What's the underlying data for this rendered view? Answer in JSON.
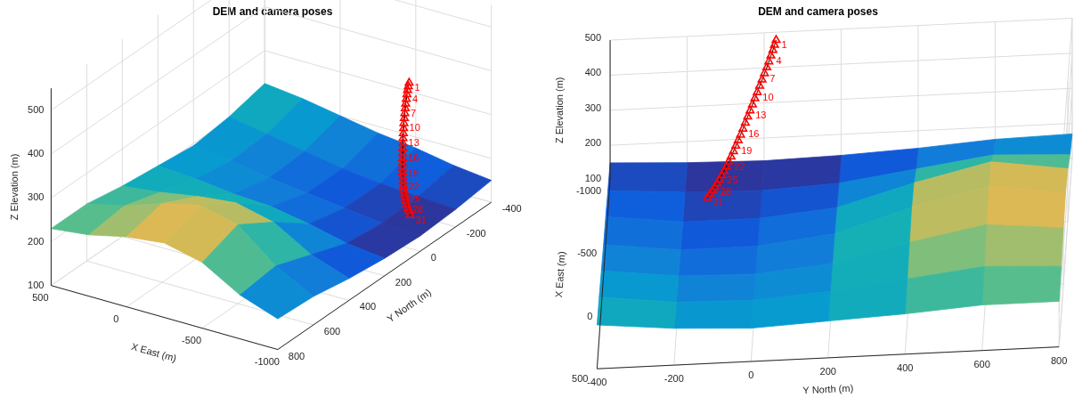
{
  "chart_data": [
    {
      "type": "surface3d",
      "title": "DEM and camera poses",
      "x_label": "X East (m)",
      "y_label": "Y North (m)",
      "z_label": "Z Elevation (m)",
      "xlim": [
        -1000,
        500
      ],
      "ylim": [
        -400,
        800
      ],
      "zlim": [
        100,
        550
      ],
      "xticks": [
        -1000,
        -500,
        0,
        500
      ],
      "yticks": [
        -400,
        -200,
        0,
        200,
        400,
        600,
        800
      ],
      "zticks": [
        100,
        200,
        300,
        400,
        500
      ],
      "grid": true,
      "surface": {
        "x": [
          -1000,
          -750,
          -500,
          -250,
          0,
          250,
          500
        ],
        "y": [
          -400,
          -200,
          0,
          200,
          400,
          600,
          800
        ],
        "z": [
          [
            150,
            140,
            135,
            140,
            150,
            165,
            170
          ],
          [
            160,
            145,
            140,
            150,
            180,
            210,
            200
          ],
          [
            175,
            150,
            150,
            170,
            230,
            280,
            250
          ],
          [
            185,
            160,
            160,
            185,
            250,
            300,
            270
          ],
          [
            200,
            175,
            170,
            190,
            240,
            280,
            260
          ],
          [
            215,
            190,
            185,
            200,
            225,
            250,
            240
          ],
          [
            225,
            205,
            195,
            205,
            215,
            230,
            230
          ]
        ]
      },
      "cameras": {
        "color": "#ff0000",
        "marker": "triangle",
        "x": [
          -965,
          -955,
          -945,
          -935,
          -925,
          -915,
          -905,
          -895,
          -885,
          -875,
          -866,
          -857,
          -848,
          -840,
          -832,
          -824,
          -816,
          -809,
          -802,
          -796,
          -790,
          -785,
          -780,
          -776,
          -773,
          -770,
          -768,
          -767,
          -767,
          -767,
          -767
        ],
        "y": [
          32,
          28,
          24,
          19,
          14,
          9,
          3,
          -3,
          -9,
          -15,
          -21,
          -27,
          -33,
          -39,
          -45,
          -51,
          -57,
          -63,
          -69,
          -75,
          -81,
          -87,
          -93,
          -99,
          -105,
          -111,
          -117,
          -123,
          -129,
          -135,
          -142
        ],
        "z": [
          490,
          480,
          469,
          457,
          444,
          431,
          418,
          404,
          390,
          376,
          362,
          348,
          334,
          320,
          306,
          292,
          278,
          265,
          252,
          239,
          226,
          214,
          202,
          191,
          180,
          169,
          159,
          149,
          140,
          131,
          120
        ],
        "labels": [
          1,
          null,
          null,
          4,
          null,
          null,
          7,
          null,
          null,
          10,
          null,
          null,
          13,
          null,
          null,
          16,
          null,
          null,
          19,
          null,
          null,
          22,
          null,
          null,
          25,
          null,
          null,
          28,
          null,
          null,
          31
        ]
      }
    },
    {
      "type": "surface3d",
      "title": "DEM and camera poses",
      "x_label": "X East (m)",
      "y_label": "Y North (m)",
      "z_label": "Z Elevation (m)",
      "xlim": [
        -1000,
        500
      ],
      "ylim": [
        -400,
        800
      ],
      "zlim": [
        100,
        500
      ],
      "xticks": [
        -1000,
        -500,
        0,
        500
      ],
      "yticks": [
        -400,
        -200,
        0,
        200,
        400,
        600,
        800
      ],
      "zticks": [
        100,
        200,
        300,
        400,
        500
      ],
      "grid": true,
      "surface": {
        "x": [
          -1000,
          -750,
          -500,
          -250,
          0,
          250,
          500
        ],
        "y": [
          -400,
          -200,
          0,
          200,
          400,
          600,
          800
        ],
        "z": [
          [
            150,
            140,
            135,
            140,
            150,
            165,
            170
          ],
          [
            160,
            145,
            140,
            150,
            180,
            210,
            200
          ],
          [
            175,
            150,
            150,
            170,
            230,
            280,
            250
          ],
          [
            185,
            160,
            160,
            185,
            250,
            300,
            270
          ],
          [
            200,
            175,
            170,
            190,
            240,
            280,
            260
          ],
          [
            215,
            190,
            185,
            200,
            225,
            250,
            240
          ],
          [
            225,
            205,
            195,
            205,
            215,
            230,
            230
          ]
        ]
      },
      "cameras": {
        "color": "#ff0000",
        "marker": "triangle",
        "x": [
          -965,
          -955,
          -945,
          -935,
          -925,
          -915,
          -905,
          -895,
          -885,
          -875,
          -866,
          -857,
          -848,
          -840,
          -832,
          -824,
          -816,
          -809,
          -802,
          -796,
          -790,
          -785,
          -780,
          -776,
          -773,
          -770,
          -768,
          -767,
          -767,
          -767,
          -767
        ],
        "y": [
          32,
          28,
          24,
          19,
          14,
          9,
          3,
          -3,
          -9,
          -15,
          -21,
          -27,
          -33,
          -39,
          -45,
          -51,
          -57,
          -63,
          -69,
          -75,
          -81,
          -87,
          -93,
          -99,
          -105,
          -111,
          -117,
          -123,
          -129,
          -135,
          -142
        ],
        "z": [
          490,
          480,
          469,
          457,
          444,
          431,
          418,
          404,
          390,
          376,
          362,
          348,
          334,
          320,
          306,
          292,
          278,
          265,
          252,
          239,
          226,
          214,
          202,
          191,
          180,
          169,
          159,
          149,
          140,
          131,
          120
        ],
        "labels": [
          1,
          null,
          null,
          4,
          null,
          null,
          7,
          null,
          null,
          10,
          null,
          null,
          13,
          null,
          null,
          16,
          null,
          null,
          19,
          null,
          null,
          22,
          null,
          null,
          25,
          null,
          null,
          28,
          null,
          null,
          31
        ]
      }
    }
  ]
}
